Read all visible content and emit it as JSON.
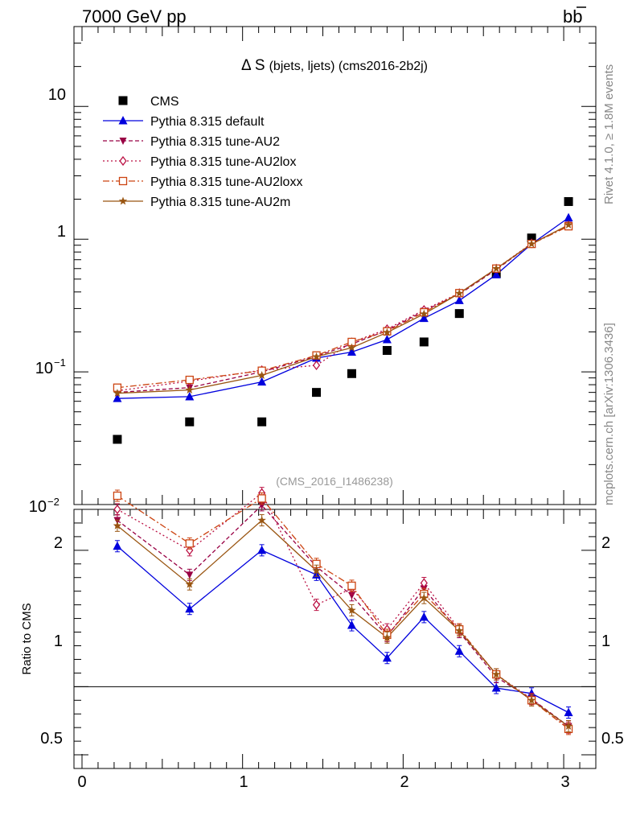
{
  "header": {
    "left": "7000 GeV pp",
    "right": "b",
    "right_bar": "b"
  },
  "side_labels": {
    "top": "Rivet 4.1.0, ≥ 1.8M events",
    "bottom": "mcplots.cern.ch [arXiv:1306.3436]"
  },
  "chart_data": {
    "type": "line",
    "title": "Δ S (bjets, ljets) (cms2016-2b2j)",
    "title_parts": {
      "symbol": "Δ S",
      "rest": "(bjets, ljets) (cms2016-2b2j)"
    },
    "watermark": "(CMS_2016_I1486238)",
    "xlabel": "",
    "xlim": [
      -0.05,
      3.2
    ],
    "x_ticks": [
      "0",
      "1",
      "2",
      "3"
    ],
    "x": [
      0.22,
      0.67,
      1.12,
      1.46,
      1.68,
      1.9,
      2.13,
      2.35,
      2.58,
      2.8,
      3.03
    ],
    "main": {
      "yscale": "log",
      "ylim": [
        0.01,
        40
      ],
      "y_tick_labels": {
        "e1": "10",
        "e0": "1",
        "em1": "10",
        "em1_exp": "−1",
        "em2": "10",
        "em2_exp": "−2"
      }
    },
    "ratio": {
      "ylabel": "Ratio to CMS",
      "ylim": [
        0.4,
        2.3
      ],
      "y_ticks": [
        "0.5",
        "1",
        "2"
      ]
    },
    "series": [
      {
        "name": "CMS",
        "color": "#000000",
        "marker": "square",
        "dash": "",
        "legend_label": "CMS",
        "values": [
          0.031,
          0.042,
          0.042,
          0.07,
          0.097,
          0.145,
          0.168,
          0.275,
          0.55,
          1.02,
          1.92
        ],
        "ratio": null
      },
      {
        "name": "Pythia 8.315 default",
        "color": "#0000dd",
        "marker": "triangle",
        "dash": "",
        "legend_label": "Pythia 8.315 default",
        "values": [
          0.063,
          0.065,
          0.084,
          0.127,
          0.141,
          0.175,
          0.253,
          0.345,
          0.54,
          0.92,
          1.45
        ],
        "ratio": [
          2.03,
          1.57,
          2.0,
          1.82,
          1.45,
          1.21,
          1.51,
          1.26,
          0.99,
          0.95,
          0.81
        ]
      },
      {
        "name": "Pythia 8.315 tune-AU2",
        "color": "#990044",
        "marker": "triangle-down",
        "dash": "5,3",
        "legend_label": "Pythia 8.315 tune-AU2",
        "values": [
          0.07,
          0.076,
          0.1,
          0.131,
          0.162,
          0.205,
          0.288,
          0.385,
          0.59,
          0.92,
          1.28
        ],
        "ratio": [
          2.22,
          1.82,
          2.33,
          1.88,
          1.67,
          1.37,
          1.72,
          1.4,
          1.07,
          0.91,
          0.71
        ]
      },
      {
        "name": "Pythia 8.315 tune-AU2lox",
        "color": "#bb1144",
        "marker": "diamond-open",
        "dash": "2,3",
        "legend_label": "Pythia 8.315 tune-AU2lox",
        "values": [
          0.072,
          0.085,
          0.103,
          0.112,
          0.167,
          0.21,
          0.293,
          0.392,
          0.6,
          0.93,
          1.27
        ],
        "ratio": [
          2.3,
          2.0,
          2.42,
          1.6,
          1.72,
          1.42,
          1.76,
          1.42,
          1.09,
          0.91,
          0.7
        ]
      },
      {
        "name": "Pythia 8.315 tune-AU2loxx",
        "color": "#cc4411",
        "marker": "square-open",
        "dash": "8,3,2,3",
        "legend_label": "Pythia 8.315 tune-AU2loxx",
        "values": [
          0.076,
          0.087,
          0.102,
          0.133,
          0.168,
          0.202,
          0.281,
          0.392,
          0.6,
          0.92,
          1.25
        ],
        "ratio": [
          2.4,
          2.05,
          2.38,
          1.9,
          1.74,
          1.38,
          1.68,
          1.42,
          1.09,
          0.9,
          0.69
        ]
      },
      {
        "name": "Pythia 8.315 tune-AU2m",
        "color": "#995511",
        "marker": "star",
        "dash": "",
        "legend_label": "Pythia 8.315 tune-AU2m",
        "values": [
          0.069,
          0.073,
          0.094,
          0.13,
          0.152,
          0.198,
          0.273,
          0.39,
          0.6,
          0.92,
          1.28
        ],
        "ratio": [
          2.18,
          1.75,
          2.22,
          1.85,
          1.56,
          1.36,
          1.65,
          1.41,
          1.09,
          0.9,
          0.71
        ]
      }
    ]
  }
}
